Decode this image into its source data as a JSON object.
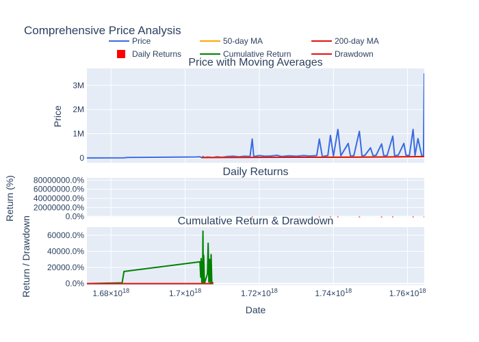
{
  "title": "Comprehensive Price Analysis",
  "colors": {
    "plot_bg": "#e5ecf6",
    "grid": "#ffffff",
    "text": "#2a3f5f",
    "price": "#3a6ae0",
    "ma50": "#ffa500",
    "ma200": "#e01010",
    "daily_returns": "#ff0000",
    "cumulative": "#008000",
    "drawdown": "#e01010"
  },
  "legend": {
    "placement": "top",
    "items": [
      {
        "label": "Price",
        "symbol": "line",
        "color_key": "price"
      },
      {
        "label": "50-day MA",
        "symbol": "line",
        "color_key": "ma50"
      },
      {
        "label": "200-day MA",
        "symbol": "line",
        "color_key": "ma200"
      },
      {
        "label": "Daily Returns",
        "symbol": "square",
        "color_key": "daily_returns"
      },
      {
        "label": "Cumulative Return",
        "symbol": "line",
        "color_key": "cumulative"
      },
      {
        "label": "Drawdown",
        "symbol": "line",
        "color_key": "drawdown"
      }
    ]
  },
  "x_axis": {
    "label": "Date",
    "range": [
      1.6735e+18,
      1.7645e+18
    ],
    "ticks": [
      {
        "value": 1.68e+18,
        "mantissa": "1.68",
        "exp": "18"
      },
      {
        "value": 1.7e+18,
        "mantissa": "1.7",
        "exp": "18"
      },
      {
        "value": 1.72e+18,
        "mantissa": "1.72",
        "exp": "18"
      },
      {
        "value": 1.74e+18,
        "mantissa": "1.74",
        "exp": "18"
      },
      {
        "value": 1.76e+18,
        "mantissa": "1.76",
        "exp": "18"
      }
    ],
    "times_sign": "×10"
  },
  "chart_data": [
    {
      "type": "line",
      "title": "Price with Moving Averages",
      "ylabel": "Price",
      "ylim": [
        -200000,
        3700000
      ],
      "yticks": [
        {
          "value": 0,
          "label": "0"
        },
        {
          "value": 1000000,
          "label": "1M"
        },
        {
          "value": 2000000,
          "label": "2M"
        },
        {
          "value": 3000000,
          "label": "3M"
        }
      ],
      "series": [
        {
          "name": "Price",
          "color_key": "price",
          "x": [
            1.6735e+18,
            1.6835e+18,
            1.6845e+18,
            1.703e+18,
            1.704e+18,
            1.7045e+18,
            1.7048e+18,
            1.7052e+18,
            1.706e+18,
            1.7075e+18,
            1.7085e+18,
            1.71e+18,
            1.7115e+18,
            1.713e+18,
            1.7145e+18,
            1.716e+18,
            1.7175e+18,
            1.7181e+18,
            1.7185e+18,
            1.72e+18,
            1.7215e+18,
            1.723e+18,
            1.7248e+18,
            1.726e+18,
            1.728e+18,
            1.73e+18,
            1.732e+18,
            1.7335e+18,
            1.7355e+18,
            1.7362e+18,
            1.737e+18,
            1.7385e+18,
            1.7392e+18,
            1.74e+18,
            1.7412e+18,
            1.742e+18,
            1.744e+18,
            1.7446e+18,
            1.7455e+18,
            1.747e+18,
            1.7477e+18,
            1.7485e+18,
            1.75e+18,
            1.7507e+18,
            1.7515e+18,
            1.753e+18,
            1.7536e+18,
            1.7545e+18,
            1.756e+18,
            1.7565e+18,
            1.7575e+18,
            1.759e+18,
            1.7596e+18,
            1.7605e+18,
            1.7615e+18,
            1.762e+18,
            1.7628e+18,
            1.7638e+18,
            1.7643e+18,
            1.7645e+18
          ],
          "y": [
            0,
            5000,
            20000,
            40000,
            45000,
            10000,
            60000,
            15000,
            40000,
            20000,
            50000,
            30000,
            60000,
            70000,
            50000,
            70000,
            60000,
            780000,
            60000,
            100000,
            70000,
            80000,
            110000,
            60000,
            90000,
            70000,
            100000,
            80000,
            100000,
            780000,
            60000,
            100000,
            930000,
            80000,
            1180000,
            90000,
            600000,
            70000,
            100000,
            1100000,
            80000,
            110000,
            420000,
            90000,
            110000,
            580000,
            80000,
            110000,
            900000,
            90000,
            120000,
            600000,
            100000,
            110000,
            1180000,
            100000,
            800000,
            110000,
            90000,
            3500000
          ]
        },
        {
          "name": "50-day MA",
          "color_key": "ma50",
          "x": [
            1.7045e+18,
            1.715e+18,
            1.73e+18,
            1.745e+18,
            1.755e+18,
            1.7645e+18
          ],
          "y": [
            20000,
            25000,
            30000,
            40000,
            45000,
            60000
          ]
        },
        {
          "name": "200-day MA",
          "color_key": "ma200",
          "x": [
            1.7045e+18,
            1.715e+18,
            1.73e+18,
            1.745e+18,
            1.755e+18,
            1.7645e+18
          ],
          "y": [
            15000,
            20000,
            25000,
            30000,
            40000,
            55000
          ]
        }
      ]
    },
    {
      "type": "bar",
      "title": "Daily Returns",
      "ylabel": "Return (%)",
      "ylim": [
        -2000000,
        85000000
      ],
      "yticks": [
        {
          "value": 0,
          "label": "0.0%"
        },
        {
          "value": 20000000,
          "label": "20000000.0%"
        },
        {
          "value": 40000000,
          "label": "40000000.0%"
        },
        {
          "value": 60000000,
          "label": "60000000.0%"
        },
        {
          "value": 80000000,
          "label": "80000000.0%"
        }
      ],
      "series": [
        {
          "name": "Daily Returns",
          "color_key": "daily_returns",
          "x": [
            1.7181e+18,
            1.7362e+18,
            1.7392e+18,
            1.7412e+18,
            1.747e+18,
            1.753e+18,
            1.756e+18,
            1.7615e+18,
            1.7645e+18
          ],
          "values": [
            150000,
            120000,
            180000,
            200000,
            160000,
            140000,
            170000,
            190000,
            300000
          ]
        }
      ]
    },
    {
      "type": "line",
      "title": "Cumulative Return & Drawdown",
      "ylabel": "Return / Drawdown",
      "ylim": [
        -2000,
        70000
      ],
      "yticks": [
        {
          "value": 0,
          "label": "0.0%"
        },
        {
          "value": 20000,
          "label": "20000.0%"
        },
        {
          "value": 40000,
          "label": "40000.0%"
        },
        {
          "value": 60000,
          "label": "60000.0%"
        }
      ],
      "series": [
        {
          "name": "Cumulative Return",
          "color_key": "cumulative",
          "x": [
            1.6735e+18,
            1.683e+18,
            1.6835e+18,
            1.704e+18,
            1.7042e+18,
            1.7043e+18,
            1.7045e+18,
            1.7046e+18,
            1.7047e+18,
            1.7048e+18,
            1.7049e+18,
            1.705e+18,
            1.7051e+18,
            1.7052e+18,
            1.706e+18,
            1.7062e+18,
            1.7064e+18,
            1.7066e+18,
            1.7068e+18,
            1.707e+18,
            1.7072e+18,
            1.7074e+18,
            1.7076e+18
          ],
          "y": [
            0,
            1000,
            15000,
            27000,
            8000,
            31000,
            1000,
            28000,
            2000,
            65000,
            1000,
            35000,
            22000,
            0,
            12000,
            50000,
            2000,
            30000,
            0,
            36000,
            500,
            1000,
            1500
          ]
        },
        {
          "name": "Drawdown",
          "color_key": "drawdown",
          "x": [
            1.6735e+18,
            1.703e+18,
            1.7076e+18
          ],
          "y": [
            0,
            0,
            0
          ]
        }
      ]
    }
  ]
}
